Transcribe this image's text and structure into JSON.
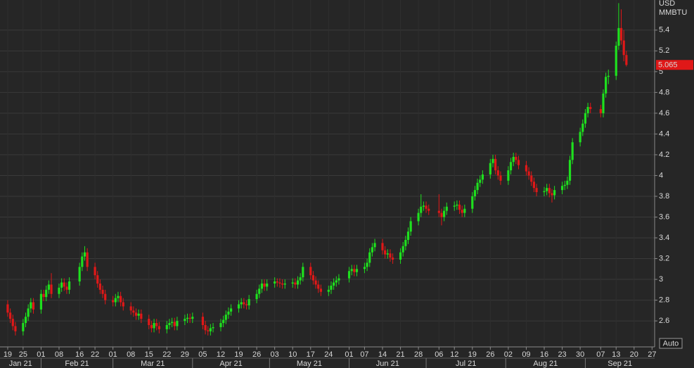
{
  "chart_data": {
    "type": "candlestick",
    "y_label": "USD",
    "y_sublabel": "MMBTU",
    "button_label": "Auto",
    "up_color": "#1ee01e",
    "down_color": "#e01818",
    "grid": true,
    "ylim": [
      2.35,
      5.69
    ],
    "yticks": [
      2.6,
      2.8,
      3,
      3.2,
      3.4,
      3.6,
      3.8,
      4,
      4.2,
      4.4,
      4.6,
      4.8,
      5,
      5.2,
      5.4
    ],
    "xlim": [
      "2021-01-16",
      "2021-09-28"
    ],
    "xticks": [
      {
        "value": "2021-01-19",
        "label": "19"
      },
      {
        "value": "2021-01-25",
        "label": "25"
      },
      {
        "value": "2021-02-01",
        "label": "01"
      },
      {
        "value": "2021-02-08",
        "label": "08"
      },
      {
        "value": "2021-02-16",
        "label": "16"
      },
      {
        "value": "2021-02-22",
        "label": "22"
      },
      {
        "value": "2021-03-01",
        "label": "01"
      },
      {
        "value": "2021-03-08",
        "label": "08"
      },
      {
        "value": "2021-03-15",
        "label": "15"
      },
      {
        "value": "2021-03-22",
        "label": "22"
      },
      {
        "value": "2021-03-29",
        "label": "29"
      },
      {
        "value": "2021-04-05",
        "label": "05"
      },
      {
        "value": "2021-04-12",
        "label": "12"
      },
      {
        "value": "2021-04-19",
        "label": "19"
      },
      {
        "value": "2021-04-26",
        "label": "26"
      },
      {
        "value": "2021-05-03",
        "label": "03"
      },
      {
        "value": "2021-05-10",
        "label": "10"
      },
      {
        "value": "2021-05-17",
        "label": "17"
      },
      {
        "value": "2021-05-24",
        "label": "24"
      },
      {
        "value": "2021-06-01",
        "label": "01"
      },
      {
        "value": "2021-06-07",
        "label": "07"
      },
      {
        "value": "2021-06-14",
        "label": "14"
      },
      {
        "value": "2021-06-21",
        "label": "21"
      },
      {
        "value": "2021-06-28",
        "label": "28"
      },
      {
        "value": "2021-07-06",
        "label": "06"
      },
      {
        "value": "2021-07-12",
        "label": "12"
      },
      {
        "value": "2021-07-19",
        "label": "19"
      },
      {
        "value": "2021-07-26",
        "label": "26"
      },
      {
        "value": "2021-08-02",
        "label": "02"
      },
      {
        "value": "2021-08-09",
        "label": "09"
      },
      {
        "value": "2021-08-16",
        "label": "16"
      },
      {
        "value": "2021-08-23",
        "label": "23"
      },
      {
        "value": "2021-08-30",
        "label": "30"
      },
      {
        "value": "2021-09-07",
        "label": "07"
      },
      {
        "value": "2021-09-13",
        "label": "13"
      },
      {
        "value": "2021-09-20",
        "label": "20"
      },
      {
        "value": "2021-09-27",
        "label": "27"
      }
    ],
    "month_labels": [
      {
        "value": "2021-01",
        "label": "Jan 21"
      },
      {
        "value": "2021-02",
        "label": "Feb 21"
      },
      {
        "value": "2021-03",
        "label": "Mar 21"
      },
      {
        "value": "2021-04",
        "label": "Apr 21"
      },
      {
        "value": "2021-05",
        "label": "May 21"
      },
      {
        "value": "2021-06",
        "label": "Jun 21"
      },
      {
        "value": "2021-07",
        "label": "Jul 21"
      },
      {
        "value": "2021-08",
        "label": "Aug 21"
      },
      {
        "value": "2021-09",
        "label": "Sep 21"
      }
    ],
    "x": [
      "2021-01-19",
      "2021-01-20",
      "2021-01-21",
      "2021-01-22",
      "2021-01-25",
      "2021-01-26",
      "2021-01-27",
      "2021-01-28",
      "2021-01-29",
      "2021-02-01",
      "2021-02-02",
      "2021-02-03",
      "2021-02-04",
      "2021-02-05",
      "2021-02-08",
      "2021-02-09",
      "2021-02-10",
      "2021-02-11",
      "2021-02-12",
      "2021-02-16",
      "2021-02-17",
      "2021-02-18",
      "2021-02-19",
      "2021-02-22",
      "2021-02-23",
      "2021-02-24",
      "2021-02-25",
      "2021-02-26",
      "2021-03-01",
      "2021-03-02",
      "2021-03-03",
      "2021-03-04",
      "2021-03-05",
      "2021-03-08",
      "2021-03-09",
      "2021-03-10",
      "2021-03-11",
      "2021-03-12",
      "2021-03-15",
      "2021-03-16",
      "2021-03-17",
      "2021-03-18",
      "2021-03-19",
      "2021-03-22",
      "2021-03-23",
      "2021-03-24",
      "2021-03-25",
      "2021-03-26",
      "2021-03-29",
      "2021-03-30",
      "2021-03-31",
      "2021-04-01",
      "2021-04-05",
      "2021-04-06",
      "2021-04-07",
      "2021-04-08",
      "2021-04-09",
      "2021-04-12",
      "2021-04-13",
      "2021-04-14",
      "2021-04-15",
      "2021-04-16",
      "2021-04-19",
      "2021-04-20",
      "2021-04-21",
      "2021-04-22",
      "2021-04-23",
      "2021-04-26",
      "2021-04-27",
      "2021-04-28",
      "2021-04-29",
      "2021-04-30",
      "2021-05-03",
      "2021-05-04",
      "2021-05-05",
      "2021-05-06",
      "2021-05-07",
      "2021-05-10",
      "2021-05-11",
      "2021-05-12",
      "2021-05-13",
      "2021-05-14",
      "2021-05-17",
      "2021-05-18",
      "2021-05-19",
      "2021-05-20",
      "2021-05-21",
      "2021-05-24",
      "2021-05-25",
      "2021-05-26",
      "2021-05-27",
      "2021-05-28",
      "2021-06-01",
      "2021-06-02",
      "2021-06-03",
      "2021-06-04",
      "2021-06-07",
      "2021-06-08",
      "2021-06-09",
      "2021-06-10",
      "2021-06-11",
      "2021-06-14",
      "2021-06-15",
      "2021-06-16",
      "2021-06-17",
      "2021-06-18",
      "2021-06-21",
      "2021-06-22",
      "2021-06-23",
      "2021-06-24",
      "2021-06-25",
      "2021-06-28",
      "2021-06-29",
      "2021-06-30",
      "2021-07-01",
      "2021-07-02",
      "2021-07-06",
      "2021-07-07",
      "2021-07-08",
      "2021-07-09",
      "2021-07-12",
      "2021-07-13",
      "2021-07-14",
      "2021-07-15",
      "2021-07-16",
      "2021-07-19",
      "2021-07-20",
      "2021-07-21",
      "2021-07-22",
      "2021-07-23",
      "2021-07-26",
      "2021-07-27",
      "2021-07-28",
      "2021-07-29",
      "2021-07-30",
      "2021-08-02",
      "2021-08-03",
      "2021-08-04",
      "2021-08-05",
      "2021-08-06",
      "2021-08-09",
      "2021-08-10",
      "2021-08-11",
      "2021-08-12",
      "2021-08-13",
      "2021-08-16",
      "2021-08-17",
      "2021-08-18",
      "2021-08-19",
      "2021-08-20",
      "2021-08-23",
      "2021-08-24",
      "2021-08-25",
      "2021-08-26",
      "2021-08-27",
      "2021-08-30",
      "2021-08-31",
      "2021-09-01",
      "2021-09-02",
      "2021-09-03",
      "2021-09-07",
      "2021-09-08",
      "2021-09-09",
      "2021-09-10",
      "2021-09-13",
      "2021-09-14",
      "2021-09-15",
      "2021-09-16",
      "2021-09-17"
    ],
    "open": [
      2.76,
      2.68,
      2.62,
      2.55,
      2.5,
      2.58,
      2.64,
      2.72,
      2.78,
      2.71,
      2.86,
      2.83,
      2.9,
      2.95,
      2.86,
      2.92,
      2.97,
      2.93,
      2.9,
      2.98,
      3.12,
      3.22,
      3.26,
      3.12,
      3.04,
      2.96,
      2.9,
      2.86,
      2.8,
      2.78,
      2.82,
      2.84,
      2.78,
      2.74,
      2.7,
      2.68,
      2.65,
      2.67,
      2.62,
      2.56,
      2.53,
      2.58,
      2.55,
      2.52,
      2.56,
      2.58,
      2.59,
      2.55,
      2.6,
      2.62,
      2.63,
      2.62,
      2.64,
      2.56,
      2.51,
      2.5,
      2.53,
      2.54,
      2.58,
      2.61,
      2.66,
      2.69,
      2.72,
      2.76,
      2.78,
      2.76,
      2.75,
      2.81,
      2.86,
      2.91,
      2.96,
      2.93,
      2.96,
      2.98,
      2.97,
      2.96,
      2.95,
      2.96,
      2.97,
      2.95,
      2.99,
      3.02,
      3.12,
      3.04,
      2.99,
      2.95,
      2.91,
      2.88,
      2.9,
      2.94,
      2.97,
      2.99,
      3.01,
      3.08,
      3.1,
      3.07,
      3.1,
      3.12,
      3.16,
      3.26,
      3.31,
      3.35,
      3.28,
      3.24,
      3.25,
      3.21,
      3.19,
      3.26,
      3.32,
      3.38,
      3.46,
      3.56,
      3.64,
      3.7,
      3.71,
      3.68,
      3.66,
      3.64,
      3.6,
      3.66,
      3.7,
      3.71,
      3.72,
      3.67,
      3.64,
      3.68,
      3.8,
      3.86,
      3.93,
      3.96,
      4.01,
      4.12,
      4.16,
      4.05,
      4.0,
      3.95,
      4.05,
      4.13,
      4.18,
      4.15,
      4.1,
      4.04,
      4.0,
      3.94,
      3.88,
      3.84,
      3.85,
      3.88,
      3.83,
      3.81,
      3.86,
      3.9,
      3.91,
      3.95,
      4.15,
      4.32,
      4.42,
      4.5,
      4.6,
      4.66,
      4.64,
      4.6,
      4.79,
      4.95,
      4.96,
      5.25,
      5.42,
      5.3,
      5.16
    ],
    "high": [
      2.8,
      2.72,
      2.66,
      2.59,
      2.62,
      2.68,
      2.76,
      2.82,
      2.82,
      2.9,
      2.9,
      2.94,
      2.99,
      3.06,
      2.96,
      3.01,
      3.01,
      2.97,
      3.02,
      3.16,
      3.26,
      3.32,
      3.3,
      3.16,
      3.08,
      3.0,
      2.94,
      2.9,
      2.84,
      2.86,
      2.88,
      2.88,
      2.82,
      2.78,
      2.74,
      2.72,
      2.71,
      2.71,
      2.66,
      2.6,
      2.62,
      2.62,
      2.59,
      2.6,
      2.62,
      2.63,
      2.63,
      2.64,
      2.66,
      2.67,
      2.67,
      2.68,
      2.68,
      2.6,
      2.55,
      2.57,
      2.58,
      2.62,
      2.65,
      2.7,
      2.73,
      2.76,
      2.8,
      2.82,
      2.82,
      2.8,
      2.85,
      2.9,
      2.95,
      3.0,
      3.0,
      3.0,
      3.02,
      3.01,
      3.01,
      3.0,
      3.0,
      3.01,
      3.01,
      3.03,
      3.06,
      3.16,
      3.16,
      3.08,
      3.03,
      2.99,
      2.95,
      2.94,
      2.98,
      3.01,
      3.03,
      3.05,
      3.12,
      3.14,
      3.14,
      3.14,
      3.16,
      3.2,
      3.3,
      3.35,
      3.39,
      3.39,
      3.32,
      3.29,
      3.29,
      3.25,
      3.3,
      3.36,
      3.42,
      3.5,
      3.6,
      3.68,
      3.82,
      3.75,
      3.75,
      3.72,
      3.82,
      3.68,
      3.7,
      3.74,
      3.75,
      3.76,
      3.76,
      3.71,
      3.72,
      3.84,
      3.9,
      3.97,
      4.0,
      4.05,
      4.16,
      4.2,
      4.2,
      4.09,
      4.04,
      4.09,
      4.17,
      4.22,
      4.22,
      4.19,
      4.14,
      4.08,
      4.04,
      3.98,
      3.92,
      3.89,
      3.92,
      3.92,
      3.87,
      3.9,
      3.94,
      3.95,
      3.99,
      4.19,
      4.36,
      4.46,
      4.54,
      4.64,
      4.7,
      4.7,
      4.68,
      4.83,
      4.99,
      5.02,
      5.29,
      5.66,
      5.6,
      5.4,
      5.2
    ],
    "low": [
      2.64,
      2.58,
      2.51,
      2.46,
      2.46,
      2.54,
      2.6,
      2.68,
      2.67,
      2.67,
      2.79,
      2.79,
      2.86,
      2.82,
      2.82,
      2.88,
      2.89,
      2.86,
      2.86,
      2.94,
      3.08,
      3.18,
      3.08,
      3.0,
      2.92,
      2.86,
      2.82,
      2.76,
      2.74,
      2.74,
      2.78,
      2.74,
      2.7,
      2.66,
      2.64,
      2.61,
      2.61,
      2.58,
      2.52,
      2.49,
      2.49,
      2.51,
      2.48,
      2.48,
      2.52,
      2.54,
      2.51,
      2.51,
      2.56,
      2.58,
      2.58,
      2.58,
      2.52,
      2.47,
      2.46,
      2.46,
      2.49,
      2.5,
      2.54,
      2.57,
      2.62,
      2.65,
      2.68,
      2.72,
      2.72,
      2.71,
      2.71,
      2.77,
      2.82,
      2.87,
      2.89,
      2.89,
      2.92,
      2.93,
      2.92,
      2.91,
      2.91,
      2.92,
      2.91,
      2.91,
      2.95,
      2.98,
      3.0,
      2.95,
      2.91,
      2.87,
      2.84,
      2.84,
      2.86,
      2.9,
      2.93,
      2.95,
      2.97,
      3.04,
      3.03,
      3.03,
      3.06,
      3.08,
      3.12,
      3.22,
      3.27,
      3.24,
      3.2,
      3.2,
      3.17,
      3.15,
      3.15,
      3.22,
      3.28,
      3.34,
      3.42,
      3.52,
      3.6,
      3.66,
      3.64,
      3.62,
      3.6,
      3.52,
      3.56,
      3.62,
      3.66,
      3.67,
      3.63,
      3.6,
      3.6,
      3.64,
      3.76,
      3.82,
      3.89,
      3.92,
      3.97,
      4.08,
      4.01,
      3.96,
      3.91,
      3.91,
      4.01,
      4.09,
      4.11,
      4.06,
      4.0,
      3.96,
      3.9,
      3.84,
      3.8,
      3.8,
      3.81,
      3.79,
      3.74,
      3.77,
      3.82,
      3.86,
      3.87,
      3.91,
      4.11,
      4.28,
      4.38,
      4.46,
      4.56,
      4.6,
      4.56,
      4.56,
      4.75,
      4.88,
      4.92,
      5.21,
      5.26,
      5.1,
      5.05
    ],
    "close": [
      2.68,
      2.62,
      2.55,
      2.5,
      2.58,
      2.64,
      2.72,
      2.78,
      2.71,
      2.86,
      2.83,
      2.9,
      2.95,
      2.86,
      2.92,
      2.97,
      2.93,
      2.9,
      2.98,
      3.12,
      3.22,
      3.26,
      3.12,
      3.04,
      2.96,
      2.9,
      2.86,
      2.8,
      2.78,
      2.82,
      2.84,
      2.78,
      2.74,
      2.7,
      2.68,
      2.65,
      2.67,
      2.62,
      2.56,
      2.53,
      2.58,
      2.55,
      2.52,
      2.56,
      2.58,
      2.59,
      2.55,
      2.6,
      2.62,
      2.63,
      2.62,
      2.64,
      2.56,
      2.51,
      2.5,
      2.53,
      2.54,
      2.58,
      2.61,
      2.66,
      2.69,
      2.72,
      2.76,
      2.78,
      2.76,
      2.75,
      2.81,
      2.86,
      2.91,
      2.96,
      2.93,
      2.96,
      2.98,
      2.97,
      2.96,
      2.95,
      2.96,
      2.97,
      2.95,
      2.99,
      3.02,
      3.12,
      3.04,
      2.99,
      2.95,
      2.91,
      2.88,
      2.9,
      2.94,
      2.97,
      2.99,
      3.01,
      3.08,
      3.1,
      3.07,
      3.1,
      3.12,
      3.16,
      3.26,
      3.31,
      3.35,
      3.28,
      3.24,
      3.25,
      3.21,
      3.19,
      3.26,
      3.32,
      3.38,
      3.46,
      3.56,
      3.64,
      3.7,
      3.71,
      3.68,
      3.66,
      3.64,
      3.6,
      3.66,
      3.7,
      3.71,
      3.72,
      3.67,
      3.64,
      3.68,
      3.8,
      3.86,
      3.93,
      3.96,
      4.01,
      4.12,
      4.16,
      4.05,
      4.0,
      3.95,
      4.05,
      4.13,
      4.18,
      4.15,
      4.1,
      4.04,
      4.0,
      3.94,
      3.88,
      3.84,
      3.85,
      3.88,
      3.83,
      3.81,
      3.86,
      3.9,
      3.91,
      3.95,
      4.15,
      4.32,
      4.42,
      4.5,
      4.6,
      4.66,
      4.64,
      4.6,
      4.79,
      4.95,
      4.96,
      5.25,
      5.42,
      5.3,
      5.16,
      5.065
    ]
  }
}
